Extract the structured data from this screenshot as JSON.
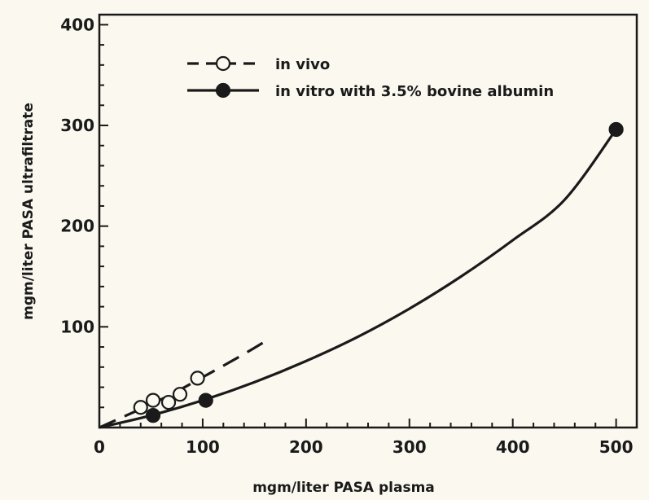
{
  "chart_data": {
    "type": "line",
    "title": "",
    "xlabel": "mgm/liter  PASA  plasma",
    "ylabel": "mgm/liter  PASA  ultrafiltrate",
    "xlim": [
      0,
      520
    ],
    "ylim": [
      0,
      410
    ],
    "x_ticks": [
      0,
      100,
      200,
      300,
      400,
      500
    ],
    "x_tick_labels": [
      "0",
      "100",
      "200",
      "300",
      "400",
      "500"
    ],
    "y_ticks": [
      100,
      200,
      300,
      400
    ],
    "y_tick_labels": [
      "100",
      "200",
      "300",
      "400"
    ],
    "legend_position": "top",
    "series": [
      {
        "name": "in vivo",
        "marker": "open-circle",
        "line": "dashed",
        "points": [
          [
            40,
            20
          ],
          [
            52,
            27
          ],
          [
            67,
            25
          ],
          [
            78,
            33
          ],
          [
            95,
            49
          ]
        ],
        "curve": [
          [
            0,
            0
          ],
          [
            60,
            28
          ],
          [
            100,
            50
          ],
          [
            140,
            73
          ],
          [
            166,
            89
          ]
        ]
      },
      {
        "name": "in vitro with 3.5% bovine albumin",
        "marker": "filled-circle",
        "line": "solid",
        "points": [
          [
            52,
            12
          ],
          [
            103,
            27
          ],
          [
            500,
            296
          ]
        ],
        "curve": [
          [
            0,
            0
          ],
          [
            50,
            12
          ],
          [
            100,
            27
          ],
          [
            150,
            45
          ],
          [
            200,
            66
          ],
          [
            250,
            90
          ],
          [
            300,
            118
          ],
          [
            350,
            150
          ],
          [
            400,
            186
          ],
          [
            450,
            226
          ],
          [
            500,
            296
          ]
        ]
      }
    ],
    "colors": {
      "ink": "#1a1a1a",
      "paper": "#fbf8ef"
    }
  }
}
